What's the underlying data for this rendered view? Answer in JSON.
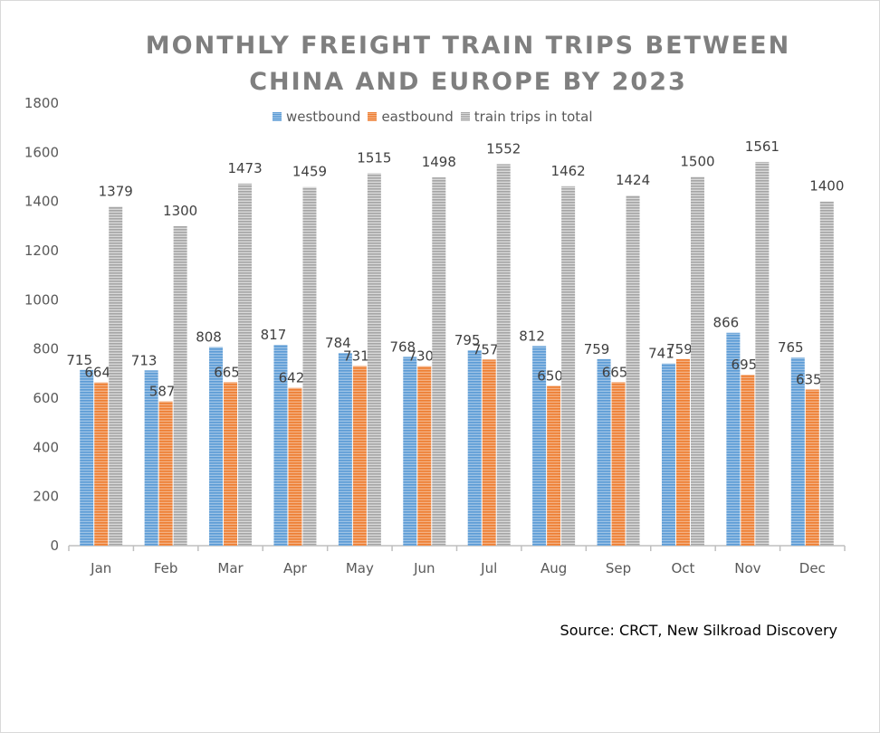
{
  "chart_data": {
    "type": "bar",
    "title_line1": "MONTHLY FREIGHT TRAIN TRIPS BETWEEN",
    "title_line2": "CHINA AND EUROPE BY 2023",
    "categories": [
      "Jan",
      "Feb",
      "Mar",
      "Apr",
      "May",
      "Jun",
      "Jul",
      "Aug",
      "Sep",
      "Oct",
      "Nov",
      "Dec"
    ],
    "series": [
      {
        "name": "westbound",
        "color": "#5b9bd5",
        "values": [
          715,
          713,
          808,
          817,
          784,
          768,
          795,
          812,
          759,
          741,
          866,
          765
        ]
      },
      {
        "name": "eastbound",
        "color": "#ed7d31",
        "values": [
          664,
          587,
          665,
          642,
          731,
          730,
          757,
          650,
          665,
          759,
          695,
          635
        ]
      },
      {
        "name": "train trips in total",
        "color": "#a5a5a5",
        "values": [
          1379,
          1300,
          1473,
          1459,
          1515,
          1498,
          1552,
          1462,
          1424,
          1500,
          1561,
          1400
        ]
      }
    ],
    "ylim": [
      0,
      1800
    ],
    "yticks": [
      0,
      200,
      400,
      600,
      800,
      1000,
      1200,
      1400,
      1600,
      1800
    ],
    "legend_position": "top",
    "grid": false,
    "source": "Source: CRCT, New Silkroad Discovery"
  }
}
